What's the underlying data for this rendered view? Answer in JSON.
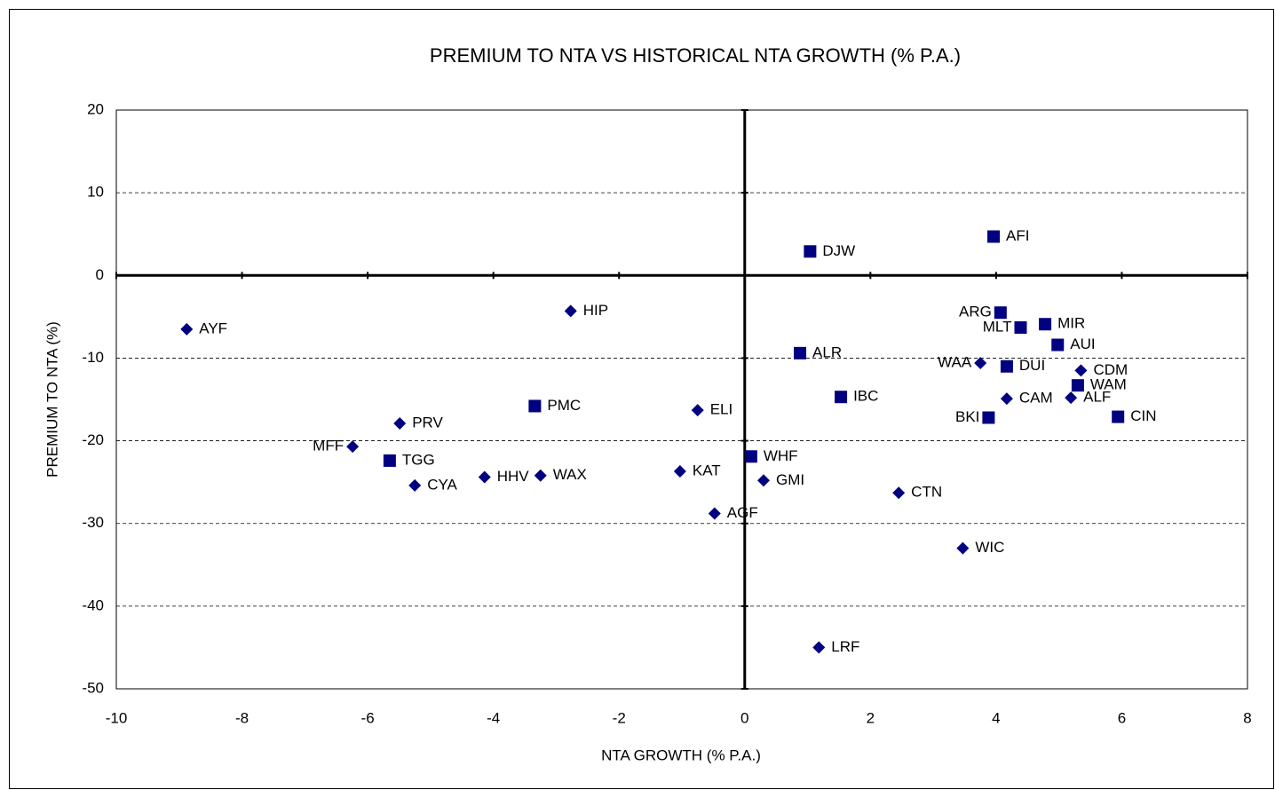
{
  "chart_data": {
    "type": "scatter",
    "title": "PREMIUM TO NTA VS HISTORICAL NTA GROWTH (% P.A.)",
    "x_label": "NTA GROWTH (% P.A.)",
    "y_label": "PREMIUM TO NTA (%)",
    "xlim": [
      -10,
      8
    ],
    "xticks": [
      -10,
      -8,
      -6,
      -4,
      -2,
      0,
      2,
      4,
      6,
      8
    ],
    "ylim": [
      -50,
      20
    ],
    "yticks": [
      -50,
      -40,
      -30,
      -20,
      -10,
      0,
      10,
      20
    ],
    "grid": true,
    "series": [
      {
        "marker": "diamond",
        "color": "#000080",
        "labels": [
          "AYF",
          "HIP",
          "PRV",
          "MFF",
          "CYA",
          "HHV",
          "WAX",
          "ELI",
          "KAT",
          "AGF",
          "GMI",
          "CTN",
          "WIC",
          "LRF",
          "WAA",
          "CAM",
          "CDM",
          "ALF"
        ],
        "x": [
          -8.88,
          -2.77,
          -5.49,
          -6.24,
          -5.25,
          -4.14,
          -3.25,
          -0.75,
          -1.03,
          -0.48,
          0.3,
          2.45,
          3.47,
          1.18,
          3.75,
          4.17,
          5.35,
          5.19
        ],
        "values": [
          -6.5,
          -4.3,
          -17.9,
          -20.7,
          -25.4,
          -24.4,
          -24.2,
          -16.3,
          -23.7,
          -28.8,
          -24.8,
          -26.3,
          -33.0,
          -45.0,
          -10.6,
          -14.9,
          -11.5,
          -14.8
        ]
      },
      {
        "marker": "square",
        "color": "#000080",
        "labels": [
          "DJW",
          "AFI",
          "ARG",
          "MLT",
          "MIR",
          "AUI",
          "DUI",
          "WAM",
          "CIN",
          "BKI",
          "IBC",
          "ALR",
          "PMC",
          "TGG",
          "WHF"
        ],
        "x": [
          1.04,
          3.96,
          4.07,
          4.39,
          4.78,
          4.98,
          4.17,
          5.3,
          5.94,
          3.88,
          1.53,
          0.88,
          -3.34,
          -5.65,
          0.1
        ],
        "values": [
          2.9,
          4.7,
          -4.5,
          -6.3,
          -5.9,
          -8.4,
          -11.0,
          -13.3,
          -17.1,
          -17.2,
          -14.7,
          -9.4,
          -15.8,
          -22.4,
          -21.9
        ]
      }
    ]
  }
}
